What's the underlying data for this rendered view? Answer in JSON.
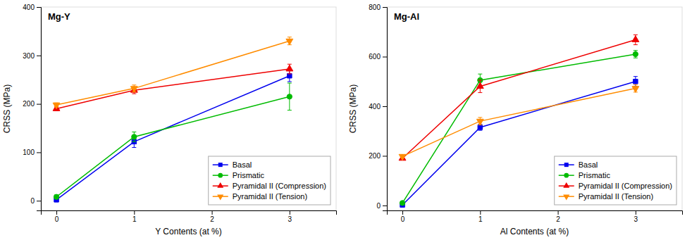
{
  "chart_data": [
    {
      "type": "line",
      "title": "Mg-Y",
      "xlabel": "Y Contents (at %)",
      "ylabel": "CRSS (MPa)",
      "x": [
        0,
        1,
        3
      ],
      "xlim": [
        -0.2,
        3.6
      ],
      "ylim": [
        -20,
        400
      ],
      "xticks": [
        0,
        1,
        2,
        3
      ],
      "yticks": [
        0,
        100,
        200,
        300,
        400
      ],
      "grid": false,
      "legend": "lower right",
      "series": [
        {
          "name": "Basal",
          "color": "#0000EE",
          "marker": "square",
          "values": [
            2,
            122,
            258
          ],
          "errors": [
            4,
            12,
            12
          ]
        },
        {
          "name": "Prismatic",
          "color": "#00BB00",
          "marker": "circle",
          "values": [
            8,
            132,
            215
          ],
          "errors": [
            4,
            10,
            28
          ]
        },
        {
          "name": "Pyramidal II (Compression)",
          "color": "#EE0000",
          "marker": "triangle-up",
          "values": [
            190,
            228,
            272
          ],
          "errors": [
            4,
            7,
            10
          ]
        },
        {
          "name": "Pyramidal II (Tension)",
          "color": "#FF8C00",
          "marker": "triangle-down",
          "values": [
            198,
            232,
            330
          ],
          "errors": [
            4,
            7,
            8
          ]
        }
      ]
    },
    {
      "type": "line",
      "title": "Mg-Al",
      "xlabel": "Al Contents (at %)",
      "ylabel": "CRSS (MPa)",
      "x": [
        0,
        1,
        3
      ],
      "xlim": [
        -0.2,
        3.6
      ],
      "ylim": [
        -20,
        800
      ],
      "xticks": [
        0,
        1,
        2,
        3
      ],
      "yticks": [
        0,
        200,
        400,
        600,
        800
      ],
      "grid": false,
      "legend": "lower right",
      "series": [
        {
          "name": "Basal",
          "color": "#0000EE",
          "marker": "square",
          "values": [
            2,
            315,
            500
          ],
          "errors": [
            4,
            12,
            20
          ]
        },
        {
          "name": "Prismatic",
          "color": "#00BB00",
          "marker": "circle",
          "values": [
            10,
            505,
            610
          ],
          "errors": [
            4,
            25,
            15
          ]
        },
        {
          "name": "Pyramidal II (Compression)",
          "color": "#EE0000",
          "marker": "triangle-up",
          "values": [
            190,
            480,
            668
          ],
          "errors": [
            4,
            25,
            20
          ]
        },
        {
          "name": "Pyramidal II (Tension)",
          "color": "#FF8C00",
          "marker": "triangle-down",
          "values": [
            198,
            340,
            472
          ],
          "errors": [
            4,
            15,
            15
          ]
        }
      ]
    }
  ]
}
